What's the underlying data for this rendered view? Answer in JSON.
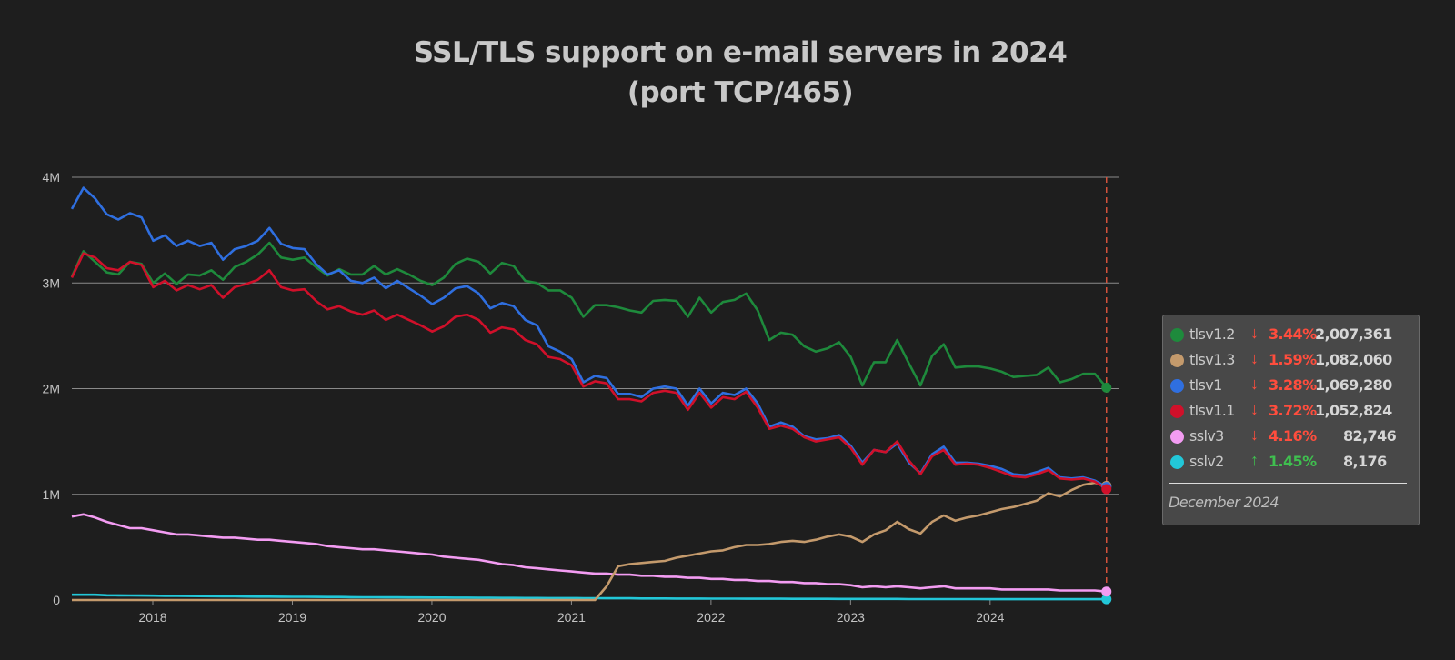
{
  "title_line1": "SSL/TLS support on e-mail servers in 2024",
  "title_line2": "(port TCP/465)",
  "legend_date": "December 2024",
  "chart_data": {
    "type": "line",
    "title": "SSL/TLS support on e-mail servers in 2024 (port TCP/465)",
    "x_start": 2017.42,
    "x_step": 0.0833,
    "xlim": [
      2017.42,
      2024.92
    ],
    "ylim": [
      0,
      4000000
    ],
    "y_ticks": [
      0,
      1000000,
      2000000,
      3000000,
      4000000
    ],
    "y_tick_labels": [
      "0",
      "1M",
      "2M",
      "3M",
      "4M"
    ],
    "x_ticks": [
      2018,
      2019,
      2020,
      2021,
      2022,
      2023,
      2024
    ],
    "x_tick_labels": [
      "2018",
      "2019",
      "2020",
      "2021",
      "2022",
      "2023",
      "2024"
    ],
    "grid": "horizontal",
    "legend_position": "right",
    "cursor_date": "December 2024",
    "series": [
      {
        "name": "tlsv1.2",
        "color": "#1e8a3c",
        "trend": "down",
        "change": "3.44%",
        "value_label": "2,007,361",
        "values": [
          3.06,
          3.3,
          3.2,
          3.1,
          3.08,
          3.2,
          3.18,
          3.0,
          3.09,
          2.99,
          3.08,
          3.07,
          3.12,
          3.03,
          3.15,
          3.2,
          3.27,
          3.38,
          3.24,
          3.22,
          3.24,
          3.15,
          3.07,
          3.13,
          3.08,
          3.08,
          3.16,
          3.08,
          3.13,
          3.08,
          3.02,
          2.98,
          3.05,
          3.18,
          3.23,
          3.2,
          3.09,
          3.19,
          3.16,
          3.02,
          3.0,
          2.93,
          2.93,
          2.86,
          2.68,
          2.79,
          2.79,
          2.77,
          2.74,
          2.72,
          2.83,
          2.84,
          2.83,
          2.68,
          2.86,
          2.72,
          2.82,
          2.84,
          2.9,
          2.74,
          2.46,
          2.53,
          2.51,
          2.4,
          2.35,
          2.38,
          2.44,
          2.3,
          2.03,
          2.25,
          2.25,
          2.46,
          2.24,
          2.03,
          2.31,
          2.42,
          2.2,
          2.21,
          2.21,
          2.19,
          2.16,
          2.11,
          2.12,
          2.13,
          2.2,
          2.06,
          2.09,
          2.14,
          2.14,
          2.01
        ]
      },
      {
        "name": "tlsv1.3",
        "color": "#c49a6c",
        "trend": "down",
        "change": "1.59%",
        "value_label": "1,082,060",
        "values": [
          0,
          0,
          0,
          0,
          0,
          0,
          0,
          0,
          0,
          0,
          0,
          0,
          0,
          0,
          0,
          0,
          0,
          0,
          0,
          0,
          0,
          0,
          0,
          0,
          0,
          0,
          0,
          0,
          0,
          0,
          0,
          0,
          0,
          0,
          0,
          0,
          0,
          0,
          0,
          0,
          0,
          0,
          0,
          0,
          0,
          0,
          0.13,
          0.32,
          0.34,
          0.35,
          0.36,
          0.37,
          0.4,
          0.42,
          0.44,
          0.46,
          0.47,
          0.5,
          0.52,
          0.52,
          0.53,
          0.55,
          0.56,
          0.55,
          0.57,
          0.6,
          0.62,
          0.6,
          0.55,
          0.62,
          0.66,
          0.74,
          0.67,
          0.63,
          0.74,
          0.8,
          0.75,
          0.78,
          0.8,
          0.83,
          0.86,
          0.88,
          0.91,
          0.94,
          1.01,
          0.98,
          1.04,
          1.09,
          1.11,
          1.08
        ]
      },
      {
        "name": "tlsv1",
        "color": "#2f6fe0",
        "trend": "down",
        "change": "3.28%",
        "value_label": "1,069,280",
        "values": [
          3.7,
          3.9,
          3.8,
          3.65,
          3.6,
          3.66,
          3.62,
          3.4,
          3.45,
          3.35,
          3.4,
          3.35,
          3.38,
          3.22,
          3.32,
          3.35,
          3.4,
          3.52,
          3.37,
          3.33,
          3.32,
          3.18,
          3.08,
          3.12,
          3.02,
          3.0,
          3.05,
          2.95,
          3.02,
          2.95,
          2.88,
          2.8,
          2.86,
          2.95,
          2.97,
          2.9,
          2.76,
          2.81,
          2.78,
          2.65,
          2.6,
          2.4,
          2.35,
          2.28,
          2.06,
          2.12,
          2.1,
          1.95,
          1.95,
          1.92,
          2.0,
          2.02,
          2.0,
          1.84,
          2.0,
          1.86,
          1.96,
          1.94,
          2.0,
          1.86,
          1.64,
          1.68,
          1.64,
          1.55,
          1.52,
          1.53,
          1.56,
          1.46,
          1.3,
          1.42,
          1.4,
          1.48,
          1.3,
          1.2,
          1.38,
          1.45,
          1.3,
          1.3,
          1.29,
          1.27,
          1.24,
          1.19,
          1.18,
          1.21,
          1.25,
          1.16,
          1.15,
          1.16,
          1.13,
          1.07
        ]
      },
      {
        "name": "tlsv1.1",
        "color": "#d0102a",
        "trend": "down",
        "change": "3.72%",
        "value_label": "1,052,824",
        "values": [
          3.05,
          3.28,
          3.24,
          3.14,
          3.12,
          3.2,
          3.17,
          2.96,
          3.02,
          2.93,
          2.98,
          2.94,
          2.98,
          2.86,
          2.96,
          2.99,
          3.03,
          3.12,
          2.96,
          2.93,
          2.94,
          2.83,
          2.75,
          2.78,
          2.73,
          2.7,
          2.74,
          2.65,
          2.7,
          2.65,
          2.6,
          2.54,
          2.59,
          2.68,
          2.7,
          2.65,
          2.53,
          2.58,
          2.56,
          2.46,
          2.42,
          2.3,
          2.28,
          2.22,
          2.02,
          2.07,
          2.05,
          1.9,
          1.9,
          1.88,
          1.96,
          1.98,
          1.96,
          1.8,
          1.96,
          1.82,
          1.92,
          1.9,
          1.97,
          1.82,
          1.62,
          1.65,
          1.62,
          1.54,
          1.5,
          1.52,
          1.54,
          1.44,
          1.28,
          1.42,
          1.4,
          1.5,
          1.32,
          1.19,
          1.36,
          1.42,
          1.28,
          1.29,
          1.28,
          1.25,
          1.21,
          1.17,
          1.16,
          1.19,
          1.23,
          1.15,
          1.14,
          1.15,
          1.12,
          1.05
        ]
      },
      {
        "name": "sslv3",
        "color": "#f39cf2",
        "trend": "down",
        "change": "4.16%",
        "value_label": "82,746",
        "values": [
          0.79,
          0.81,
          0.78,
          0.74,
          0.71,
          0.68,
          0.68,
          0.66,
          0.64,
          0.62,
          0.62,
          0.61,
          0.6,
          0.59,
          0.59,
          0.58,
          0.57,
          0.57,
          0.56,
          0.55,
          0.54,
          0.53,
          0.51,
          0.5,
          0.49,
          0.48,
          0.48,
          0.47,
          0.46,
          0.45,
          0.44,
          0.43,
          0.41,
          0.4,
          0.39,
          0.38,
          0.36,
          0.34,
          0.33,
          0.31,
          0.3,
          0.29,
          0.28,
          0.27,
          0.26,
          0.25,
          0.25,
          0.24,
          0.24,
          0.23,
          0.23,
          0.22,
          0.22,
          0.21,
          0.21,
          0.2,
          0.2,
          0.19,
          0.19,
          0.18,
          0.18,
          0.17,
          0.17,
          0.16,
          0.16,
          0.15,
          0.15,
          0.14,
          0.12,
          0.13,
          0.12,
          0.13,
          0.12,
          0.11,
          0.12,
          0.13,
          0.11,
          0.11,
          0.11,
          0.11,
          0.1,
          0.1,
          0.1,
          0.1,
          0.1,
          0.09,
          0.09,
          0.09,
          0.09,
          0.08
        ]
      },
      {
        "name": "sslv2",
        "color": "#22c7d8",
        "trend": "up",
        "change": "1.45%",
        "value_label": "8,176",
        "values": [
          0.05,
          0.05,
          0.05,
          0.045,
          0.044,
          0.043,
          0.042,
          0.041,
          0.04,
          0.039,
          0.038,
          0.037,
          0.036,
          0.035,
          0.034,
          0.033,
          0.032,
          0.032,
          0.031,
          0.03,
          0.03,
          0.029,
          0.028,
          0.028,
          0.027,
          0.026,
          0.026,
          0.025,
          0.025,
          0.024,
          0.024,
          0.023,
          0.023,
          0.022,
          0.022,
          0.021,
          0.021,
          0.02,
          0.02,
          0.019,
          0.019,
          0.018,
          0.018,
          0.018,
          0.017,
          0.017,
          0.016,
          0.016,
          0.016,
          0.015,
          0.015,
          0.015,
          0.014,
          0.014,
          0.014,
          0.013,
          0.013,
          0.013,
          0.012,
          0.012,
          0.012,
          0.012,
          0.011,
          0.011,
          0.011,
          0.011,
          0.01,
          0.01,
          0.01,
          0.01,
          0.01,
          0.01,
          0.009,
          0.009,
          0.009,
          0.009,
          0.009,
          0.009,
          0.009,
          0.008,
          0.008,
          0.008,
          0.008,
          0.008,
          0.008,
          0.008,
          0.008,
          0.008,
          0.008,
          0.008
        ]
      }
    ]
  }
}
